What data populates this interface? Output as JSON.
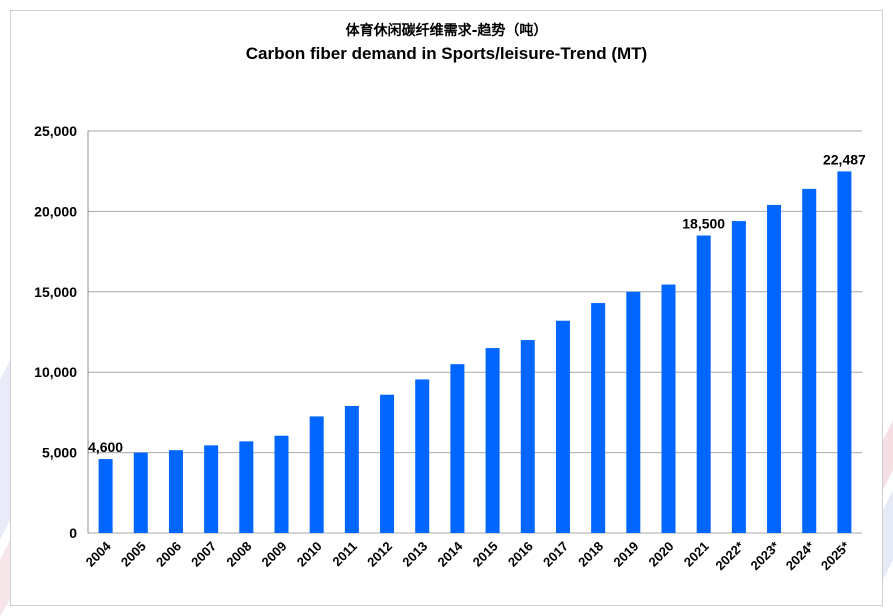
{
  "chart_data": {
    "type": "bar",
    "title": "体育休闲碳纤维需求-趋势（吨）",
    "subtitle": "Carbon fiber demand in Sports/leisure-Trend  (MT)",
    "xlabel": "",
    "ylabel": "",
    "ylim": [
      0,
      25000
    ],
    "yticks": [
      0,
      5000,
      10000,
      15000,
      20000,
      25000
    ],
    "ytick_labels": [
      "0",
      "5,000",
      "10,000",
      "15,000",
      "20,000",
      "25,000"
    ],
    "grid": true,
    "legend": "none",
    "bar_color": "#0066ff",
    "categories": [
      "2004",
      "2005",
      "2006",
      "2007",
      "2008",
      "2009",
      "2010",
      "2011",
      "2012",
      "2013",
      "2014",
      "2015",
      "2016",
      "2017",
      "2018",
      "2019",
      "2020",
      "2021",
      "2022*",
      "2023*",
      "2024*",
      "2025*"
    ],
    "values": [
      4600,
      5000,
      5150,
      5450,
      5700,
      6050,
      7250,
      7900,
      8600,
      9550,
      10500,
      11500,
      12000,
      13200,
      14300,
      15000,
      15450,
      18500,
      19400,
      20400,
      21400,
      22487
    ],
    "data_labels": [
      {
        "index": 0,
        "text": "4,600"
      },
      {
        "index": 17,
        "text": "18,500"
      },
      {
        "index": 21,
        "text": "22,487"
      }
    ]
  }
}
